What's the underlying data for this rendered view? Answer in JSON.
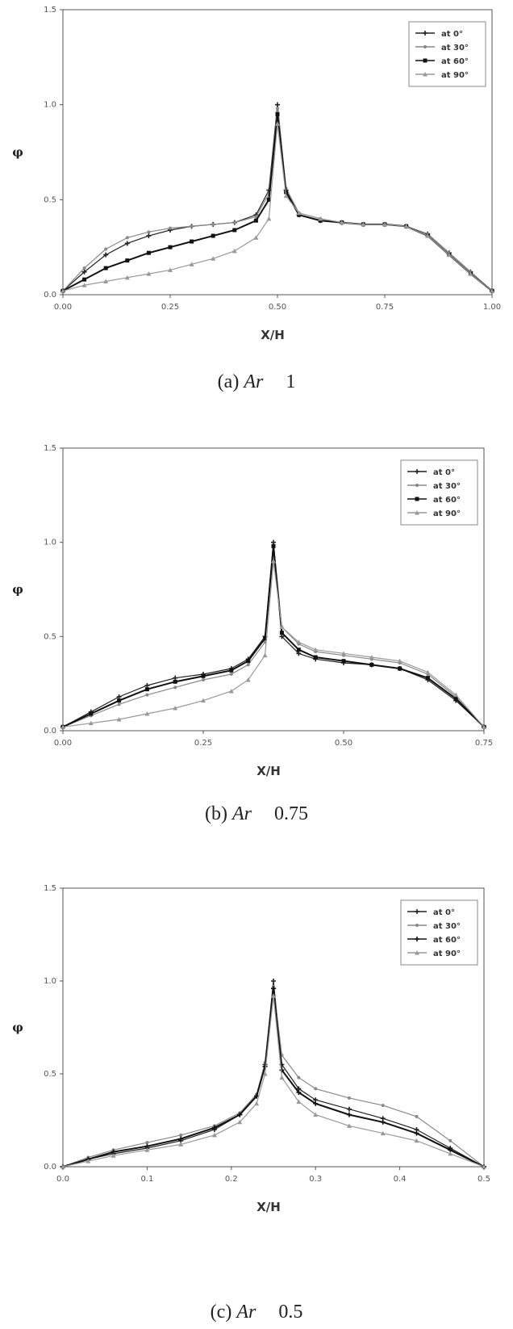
{
  "chart_data": [
    {
      "type": "line",
      "caption_prefix": "(a)",
      "caption_var": "Ar",
      "caption_value": "1",
      "xlabel": "X/H",
      "ylabel": "φ",
      "xlim": [
        0.0,
        1.0
      ],
      "ylim": [
        0.0,
        1.5
      ],
      "xticks": [
        "0.00",
        "0.25",
        "0.50",
        "0.75",
        "1.00"
      ],
      "yticks": [
        "0.0",
        "0.5",
        "1.0",
        "1.5"
      ],
      "legend_position": "top-right",
      "series": [
        {
          "name": "at 0°",
          "marker": "plus",
          "color": "#222222",
          "x": [
            0.0,
            0.05,
            0.1,
            0.15,
            0.2,
            0.25,
            0.3,
            0.35,
            0.4,
            0.45,
            0.48,
            0.5,
            0.52,
            0.55,
            0.6,
            0.65,
            0.7,
            0.75,
            0.8,
            0.85,
            0.9,
            0.95,
            1.0
          ],
          "y": [
            0.02,
            0.12,
            0.21,
            0.27,
            0.31,
            0.34,
            0.36,
            0.37,
            0.38,
            0.42,
            0.55,
            1.0,
            0.55,
            0.42,
            0.39,
            0.38,
            0.37,
            0.37,
            0.36,
            0.32,
            0.22,
            0.12,
            0.02
          ]
        },
        {
          "name": "at 30°",
          "marker": "dot",
          "color": "#888888",
          "x": [
            0.0,
            0.05,
            0.1,
            0.15,
            0.2,
            0.25,
            0.3,
            0.35,
            0.4,
            0.45,
            0.48,
            0.5,
            0.52,
            0.55,
            0.6,
            0.65,
            0.7,
            0.75,
            0.8,
            0.85,
            0.9,
            0.95,
            1.0
          ],
          "y": [
            0.02,
            0.14,
            0.24,
            0.3,
            0.33,
            0.35,
            0.36,
            0.37,
            0.38,
            0.41,
            0.53,
            0.98,
            0.56,
            0.43,
            0.4,
            0.38,
            0.37,
            0.37,
            0.36,
            0.32,
            0.22,
            0.12,
            0.02
          ]
        },
        {
          "name": "at 60°",
          "marker": "square",
          "color": "#111111",
          "x": [
            0.0,
            0.05,
            0.1,
            0.15,
            0.2,
            0.25,
            0.3,
            0.35,
            0.4,
            0.45,
            0.48,
            0.5,
            0.52,
            0.55,
            0.6,
            0.65,
            0.7,
            0.75,
            0.8,
            0.85,
            0.9,
            0.95,
            1.0
          ],
          "y": [
            0.02,
            0.08,
            0.14,
            0.18,
            0.22,
            0.25,
            0.28,
            0.31,
            0.34,
            0.39,
            0.5,
            0.95,
            0.54,
            0.42,
            0.39,
            0.38,
            0.37,
            0.37,
            0.36,
            0.31,
            0.21,
            0.11,
            0.02
          ]
        },
        {
          "name": "at 90°",
          "marker": "tri",
          "color": "#999999",
          "x": [
            0.0,
            0.05,
            0.1,
            0.15,
            0.2,
            0.25,
            0.3,
            0.35,
            0.4,
            0.45,
            0.48,
            0.5,
            0.52,
            0.55,
            0.6,
            0.65,
            0.7,
            0.75,
            0.8,
            0.85,
            0.9,
            0.95,
            1.0
          ],
          "y": [
            0.02,
            0.05,
            0.07,
            0.09,
            0.11,
            0.13,
            0.16,
            0.19,
            0.23,
            0.3,
            0.4,
            0.9,
            0.52,
            0.43,
            0.4,
            0.38,
            0.37,
            0.37,
            0.36,
            0.31,
            0.21,
            0.11,
            0.02
          ]
        }
      ]
    },
    {
      "type": "line",
      "caption_prefix": "(b)",
      "caption_var": "Ar",
      "caption_value": "0.75",
      "xlabel": "X/H",
      "ylabel": "φ",
      "xlim": [
        0.0,
        0.75
      ],
      "ylim": [
        0.0,
        1.5
      ],
      "xticks": [
        "0.00",
        "0.25",
        "0.50",
        "0.75"
      ],
      "yticks": [
        "0.0",
        "0.5",
        "1.0",
        "1.5"
      ],
      "legend_position": "top-right",
      "series": [
        {
          "name": "at 0°",
          "marker": "plus",
          "color": "#222222",
          "x": [
            0.0,
            0.05,
            0.1,
            0.15,
            0.2,
            0.25,
            0.3,
            0.33,
            0.36,
            0.375,
            0.39,
            0.42,
            0.45,
            0.5,
            0.55,
            0.6,
            0.65,
            0.7,
            0.75
          ],
          "y": [
            0.02,
            0.1,
            0.18,
            0.24,
            0.28,
            0.3,
            0.33,
            0.38,
            0.5,
            1.0,
            0.5,
            0.41,
            0.38,
            0.36,
            0.35,
            0.33,
            0.27,
            0.16,
            0.02
          ]
        },
        {
          "name": "at 30°",
          "marker": "dot",
          "color": "#888888",
          "x": [
            0.0,
            0.05,
            0.1,
            0.15,
            0.2,
            0.25,
            0.3,
            0.33,
            0.36,
            0.375,
            0.39,
            0.42,
            0.45,
            0.5,
            0.55,
            0.6,
            0.65,
            0.7,
            0.75
          ],
          "y": [
            0.02,
            0.08,
            0.14,
            0.19,
            0.23,
            0.27,
            0.3,
            0.35,
            0.47,
            0.95,
            0.55,
            0.46,
            0.42,
            0.4,
            0.38,
            0.36,
            0.3,
            0.18,
            0.02
          ]
        },
        {
          "name": "at 60°",
          "marker": "square",
          "color": "#111111",
          "x": [
            0.0,
            0.05,
            0.1,
            0.15,
            0.2,
            0.25,
            0.3,
            0.33,
            0.36,
            0.375,
            0.39,
            0.42,
            0.45,
            0.5,
            0.55,
            0.6,
            0.65,
            0.7,
            0.75
          ],
          "y": [
            0.02,
            0.09,
            0.16,
            0.22,
            0.26,
            0.29,
            0.32,
            0.37,
            0.49,
            0.98,
            0.52,
            0.43,
            0.39,
            0.37,
            0.35,
            0.33,
            0.28,
            0.17,
            0.02
          ]
        },
        {
          "name": "at 90°",
          "marker": "tri",
          "color": "#999999",
          "x": [
            0.0,
            0.05,
            0.1,
            0.15,
            0.2,
            0.25,
            0.3,
            0.33,
            0.36,
            0.375,
            0.39,
            0.42,
            0.45,
            0.5,
            0.55,
            0.6,
            0.65,
            0.7,
            0.75
          ],
          "y": [
            0.02,
            0.04,
            0.06,
            0.09,
            0.12,
            0.16,
            0.21,
            0.27,
            0.4,
            0.9,
            0.55,
            0.47,
            0.43,
            0.41,
            0.39,
            0.37,
            0.31,
            0.19,
            0.02
          ]
        }
      ]
    },
    {
      "type": "line",
      "caption_prefix": "(c)",
      "caption_var": "Ar",
      "caption_value": "0.5",
      "xlabel": "X/H",
      "ylabel": "φ",
      "xlim": [
        0.0,
        0.5
      ],
      "ylim": [
        0.0,
        1.5
      ],
      "xticks": [
        "0.0",
        "0.1",
        "0.2",
        "0.3",
        "0.4",
        "0.5"
      ],
      "yticks": [
        "0.0",
        "0.5",
        "1.0",
        "1.5"
      ],
      "legend_position": "top-right",
      "series": [
        {
          "name": "at 0°",
          "marker": "plus",
          "color": "#222222",
          "x": [
            0.0,
            0.03,
            0.06,
            0.1,
            0.14,
            0.18,
            0.21,
            0.23,
            0.24,
            0.25,
            0.26,
            0.28,
            0.3,
            0.34,
            0.38,
            0.42,
            0.46,
            0.5
          ],
          "y": [
            0.0,
            0.04,
            0.07,
            0.1,
            0.14,
            0.2,
            0.28,
            0.38,
            0.55,
            1.0,
            0.55,
            0.42,
            0.36,
            0.31,
            0.26,
            0.2,
            0.1,
            0.0
          ]
        },
        {
          "name": "at 30°",
          "marker": "dot",
          "color": "#888888",
          "x": [
            0.0,
            0.03,
            0.06,
            0.1,
            0.14,
            0.18,
            0.21,
            0.23,
            0.24,
            0.25,
            0.26,
            0.28,
            0.3,
            0.34,
            0.38,
            0.42,
            0.46,
            0.5
          ],
          "y": [
            0.0,
            0.05,
            0.09,
            0.13,
            0.17,
            0.22,
            0.29,
            0.39,
            0.56,
            0.97,
            0.6,
            0.48,
            0.42,
            0.37,
            0.33,
            0.27,
            0.14,
            0.0
          ]
        },
        {
          "name": "at 60°",
          "marker": "plus",
          "color": "#111111",
          "x": [
            0.0,
            0.03,
            0.06,
            0.1,
            0.14,
            0.18,
            0.21,
            0.23,
            0.24,
            0.25,
            0.26,
            0.28,
            0.3,
            0.34,
            0.38,
            0.42,
            0.46,
            0.5
          ],
          "y": [
            0.0,
            0.04,
            0.08,
            0.11,
            0.15,
            0.21,
            0.28,
            0.38,
            0.54,
            0.96,
            0.52,
            0.4,
            0.34,
            0.28,
            0.24,
            0.18,
            0.09,
            0.0
          ]
        },
        {
          "name": "at 90°",
          "marker": "tri",
          "color": "#999999",
          "x": [
            0.0,
            0.03,
            0.06,
            0.1,
            0.14,
            0.18,
            0.21,
            0.23,
            0.24,
            0.25,
            0.26,
            0.28,
            0.3,
            0.34,
            0.38,
            0.42,
            0.46,
            0.5
          ],
          "y": [
            0.0,
            0.03,
            0.06,
            0.09,
            0.12,
            0.17,
            0.24,
            0.34,
            0.5,
            0.92,
            0.48,
            0.35,
            0.28,
            0.22,
            0.18,
            0.14,
            0.07,
            0.0
          ]
        }
      ]
    }
  ]
}
